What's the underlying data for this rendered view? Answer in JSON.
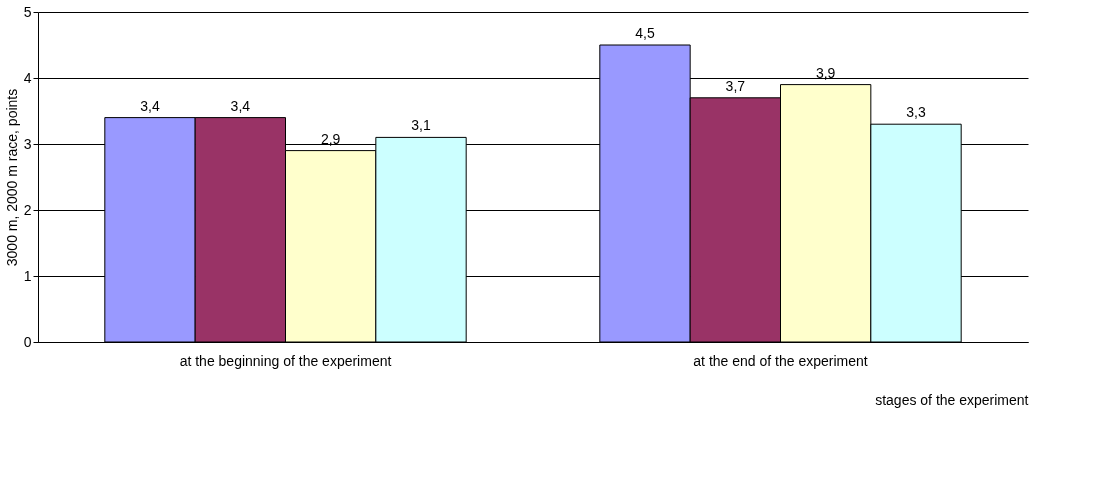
{
  "chart_data": {
    "type": "bar",
    "xlabel": "stages of the experiment",
    "ylabel": "3000 m, 2000 m race, points",
    "categories": [
      "at the beginning of the experiment",
      "at the end of the experiment"
    ],
    "series": [
      {
        "color": "#9999ff",
        "values": [
          3.4,
          4.5
        ],
        "value_labels": [
          "3,4",
          "4,5"
        ]
      },
      {
        "color": "#993366",
        "values": [
          3.4,
          3.7
        ],
        "value_labels": [
          "3,4",
          "3,7"
        ]
      },
      {
        "color": "#ffffcc",
        "values": [
          2.9,
          3.9
        ],
        "value_labels": [
          "2,9",
          "3,9"
        ]
      },
      {
        "color": "#ccffff",
        "values": [
          3.1,
          3.3
        ],
        "value_labels": [
          "3,1",
          "3,3"
        ]
      }
    ],
    "ylim": [
      0,
      5
    ],
    "yticks": [
      0,
      1,
      2,
      3,
      4,
      5
    ],
    "grid": "y",
    "legend": false
  }
}
